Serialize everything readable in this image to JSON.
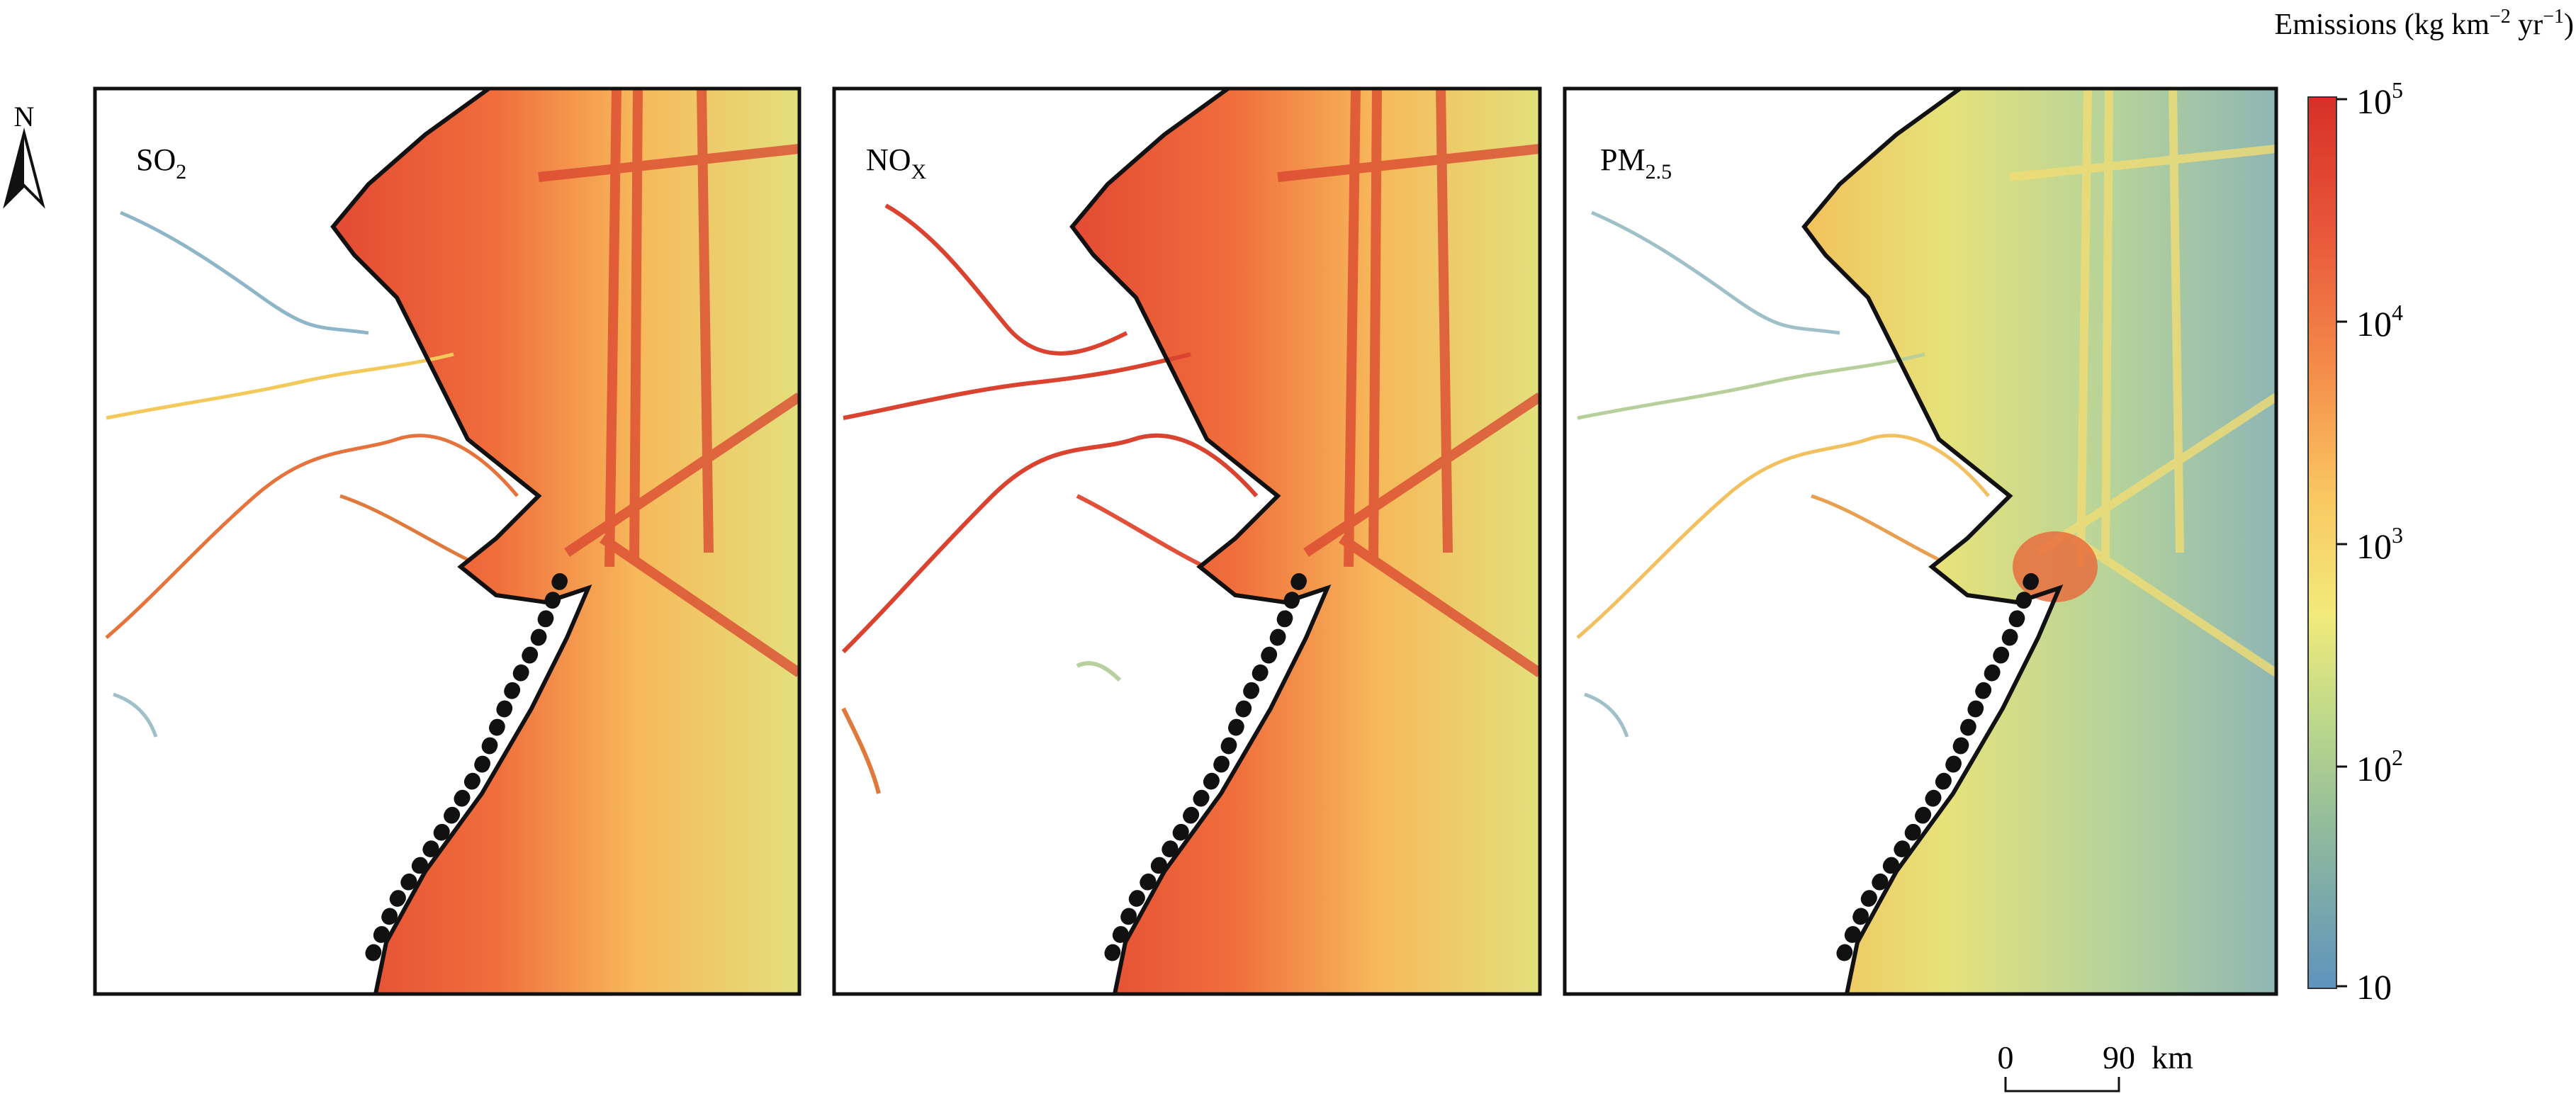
{
  "panels": [
    {
      "id": "so2",
      "label_main": "SO",
      "label_sub": "2"
    },
    {
      "id": "nox",
      "label_main": "NO",
      "label_sub": "X"
    },
    {
      "id": "pm25",
      "label_main": "PM",
      "label_sub": "2.5"
    }
  ],
  "north_arrow": {
    "label": "N"
  },
  "colorbar": {
    "title_main": "Emissions (kg km",
    "title_exp1": "−2",
    "title_mid": " yr",
    "title_exp2": "−1",
    "title_close": ")",
    "ticks": [
      {
        "base": "10",
        "exp": "5"
      },
      {
        "base": "10",
        "exp": "4"
      },
      {
        "base": "10",
        "exp": "3"
      },
      {
        "base": "10",
        "exp": "2"
      },
      {
        "base": "10",
        "exp": ""
      }
    ],
    "scale": "log",
    "colors": [
      "#d73027",
      "#f46d43",
      "#fdae61",
      "#fee08b",
      "#d9ef8b",
      "#91bfdb",
      "#5b8db8"
    ]
  },
  "scale_bar": {
    "start": "0",
    "end": "90",
    "unit": "km"
  }
}
